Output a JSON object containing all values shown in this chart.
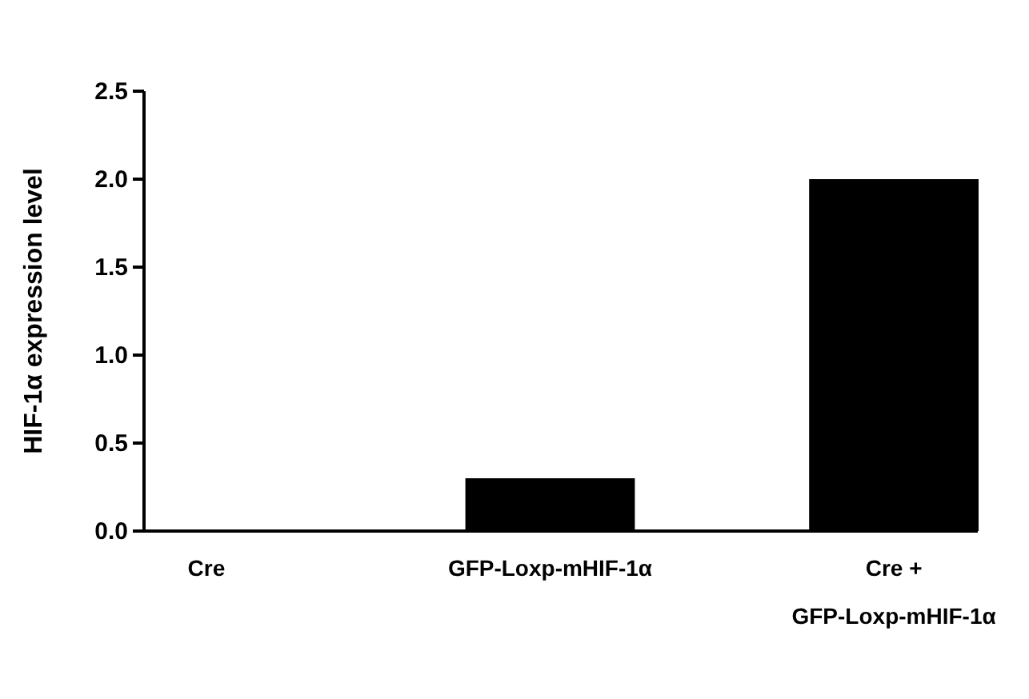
{
  "chart_data": {
    "type": "bar",
    "ylabel": "HIF-1α expression level",
    "categories": [
      "Cre",
      "GFP-Loxp-mHIF-1α",
      "Cre + GFP-Loxp-mHIF-1α"
    ],
    "values": [
      0,
      0.3,
      2.0
    ],
    "color": "#000000",
    "ylim": [
      0,
      2.5
    ],
    "yticks": [
      {
        "value": 0,
        "label": "0.0"
      },
      {
        "value": 0.5,
        "label": "0.5"
      },
      {
        "value": 1,
        "label": "1.0"
      },
      {
        "value": 1.5,
        "label": "1.5"
      },
      {
        "value": 2,
        "label": "2.0"
      },
      {
        "value": 2.5,
        "label": "2.5"
      }
    ],
    "grid": false
  }
}
